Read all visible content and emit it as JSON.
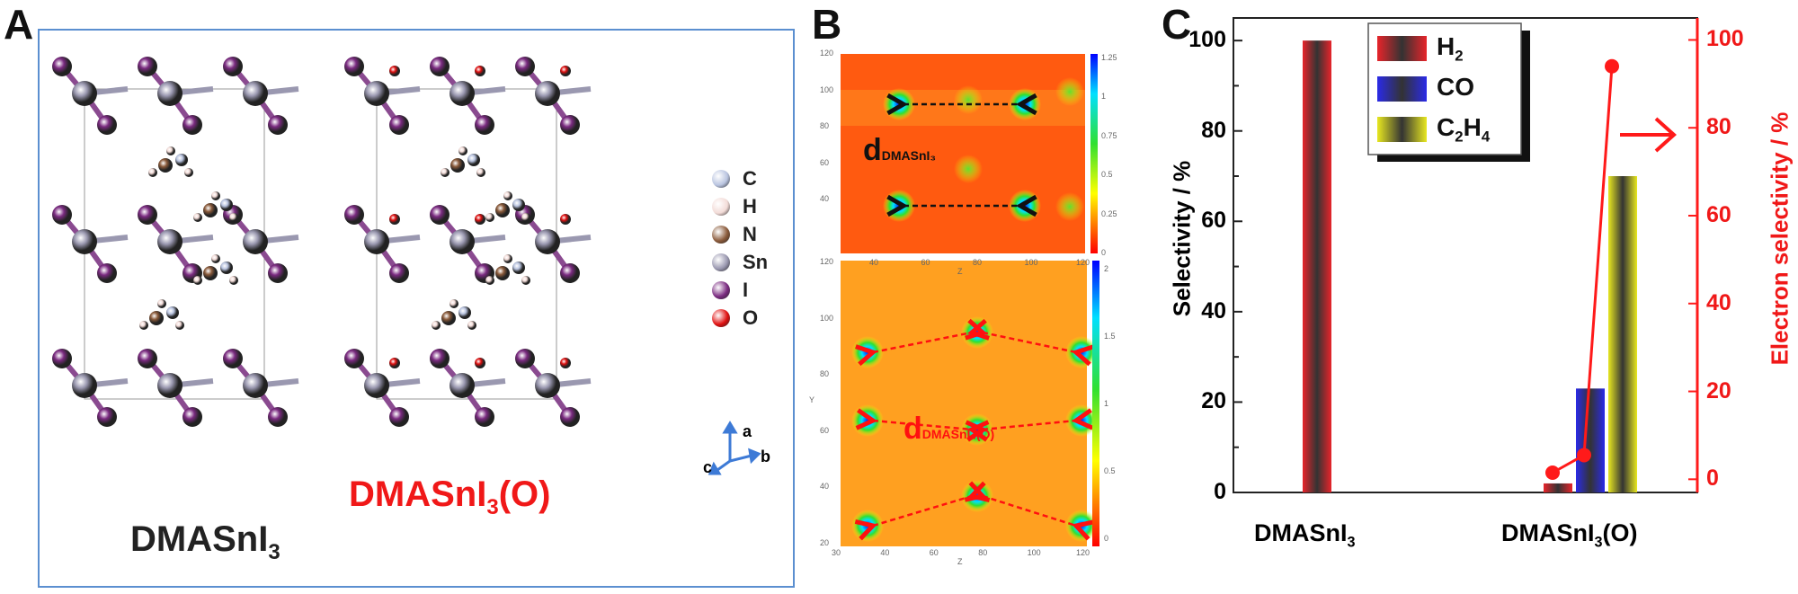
{
  "panels": {
    "a": "A",
    "b": "B",
    "c": "C"
  },
  "panel_a": {
    "compound1": {
      "base": "DMASnI",
      "sub": "3"
    },
    "compound2": {
      "base": "DMASnI",
      "sub": "3",
      "suffix": "(O)"
    },
    "legend": [
      {
        "label": "C",
        "color": "#b9c4e0"
      },
      {
        "label": "H",
        "color": "#f3dcd8"
      },
      {
        "label": "N",
        "color": "#8a5a3a"
      },
      {
        "label": "Sn",
        "color": "#9a98b0"
      },
      {
        "label": "I",
        "color": "#7a2a80"
      },
      {
        "label": "O",
        "color": "#e01010"
      }
    ],
    "axes": {
      "a": "a",
      "b": "b",
      "c": "c"
    }
  },
  "panel_b": {
    "top": {
      "label_d": "d",
      "label_sub": "DMASnI₃",
      "x_ticks": [
        "40",
        "60",
        "80",
        "100",
        "120"
      ],
      "y_ticks": [
        "120",
        "100",
        "80",
        "60",
        "40"
      ],
      "xlabel": "Z",
      "colorbar": [
        "1.25",
        "1",
        "0.75",
        "0.5",
        "0.25",
        "0"
      ]
    },
    "bottom": {
      "label_d": "d",
      "label_sub": "DMASnI₃(O)",
      "x_ticks": [
        "30",
        "40",
        "60",
        "80",
        "100",
        "120"
      ],
      "y_ticks": [
        "120",
        "100",
        "80",
        "60",
        "40",
        "20"
      ],
      "xlabel": "Z",
      "ylabel": "Y",
      "colorbar": [
        "2",
        "1.5",
        "1",
        "0.5",
        "0"
      ]
    }
  },
  "chart_data": {
    "type": "bar",
    "categories": [
      "DMASnI3",
      "DMASnI3(O)"
    ],
    "category_labels": [
      {
        "base": "DMASnI",
        "sub": "3",
        "suffix": ""
      },
      {
        "base": "DMASnI",
        "sub": "3",
        "suffix": "(O)"
      }
    ],
    "series": [
      {
        "name": "H2",
        "legend": {
          "base": "H",
          "sub": "2",
          "rest": ""
        },
        "color": "#e8242a",
        "values": [
          100,
          2
        ]
      },
      {
        "name": "CO",
        "legend": {
          "base": "CO",
          "sub": "",
          "rest": ""
        },
        "color": "#2a2ae8",
        "values": [
          0,
          23
        ]
      },
      {
        "name": "C2H4",
        "legend": {
          "base": "C",
          "sub": "2",
          "rest": "H",
          "sub2": "4"
        },
        "color": "#e8e820",
        "values": [
          0,
          70
        ]
      }
    ],
    "line_series": {
      "name": "Electron selectivity",
      "axis": "right",
      "color": "#ff1a1a",
      "points": [
        1.5,
        5.5,
        94
      ]
    },
    "ylabel": "Selectivity / %",
    "ylabel_right": "Electron selectivity / %",
    "ylim": [
      0,
      105
    ],
    "ylim_right": [
      -3,
      105
    ],
    "y_ticks": [
      "0",
      "20",
      "40",
      "60",
      "80",
      "100"
    ],
    "y_ticks_right": [
      "0",
      "20",
      "40",
      "60",
      "80",
      "100"
    ],
    "legend_position": "top-center"
  }
}
